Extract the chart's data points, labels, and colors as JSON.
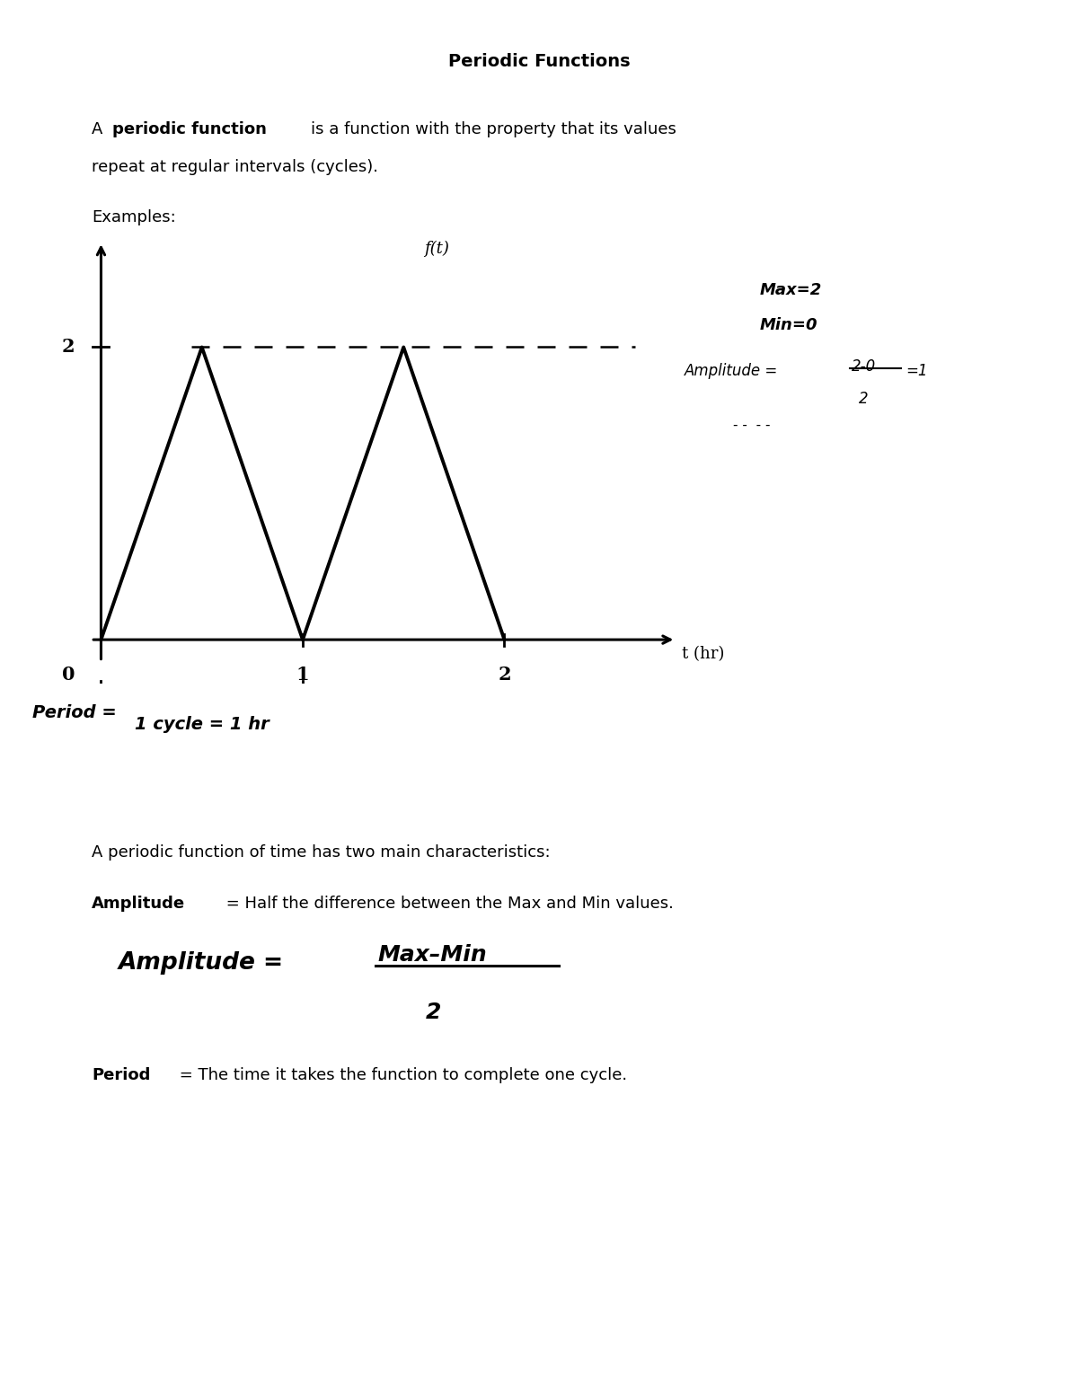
{
  "title": "Periodic Functions",
  "bg_color": "#ffffff",
  "graph": {
    "triangle_x": [
      0,
      0.5,
      1.0,
      1.5,
      2.0
    ],
    "triangle_y": [
      0,
      2,
      0,
      2,
      0
    ],
    "dashed_x_start": 0.45,
    "dashed_x_end": 2.65,
    "dashed_y": 2.0,
    "xlim": [
      -0.1,
      3.0
    ],
    "ylim": [
      -0.3,
      2.8
    ]
  },
  "characteristics_text": "A periodic function of time has two main characteristics:",
  "amplitude_def_bold": "Amplitude",
  "amplitude_def_normal": " = Half the difference between the Max and Min values.",
  "period_def_bold": "Period",
  "period_def_normal": " = The time it takes the function to complete one cycle."
}
